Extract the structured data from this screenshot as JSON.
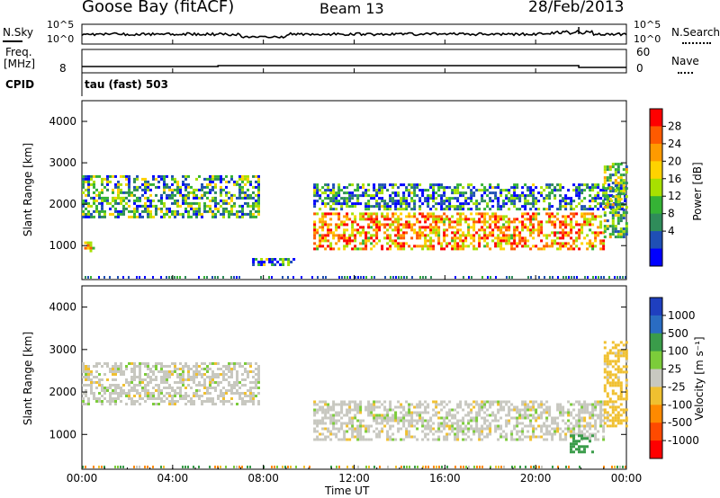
{
  "header": {
    "station": "Goose Bay (fitACF)",
    "beam": "Beam 13",
    "date": "28/Feb/2013"
  },
  "noise_panel": {
    "left_label": "N.Sky",
    "right_label": "N.Search",
    "right_ticks": [
      "10^5",
      "10^0"
    ],
    "left_ticks": [
      "10^5",
      "10^0"
    ]
  },
  "freq_panel": {
    "left_label_line1": "Freq.",
    "left_label_line2": "[MHz]",
    "left_ticks": [
      "8"
    ],
    "right_label": "Nave",
    "right_ticks": [
      "60",
      "0"
    ]
  },
  "cpid": {
    "label": "CPID",
    "value": "tau (fast) 503"
  },
  "x_axis": {
    "label": "Time UT",
    "ticks": [
      "00:00",
      "04:00",
      "08:00",
      "12:00",
      "16:00",
      "20:00",
      "00:00"
    ]
  },
  "power_panel": {
    "ylabel": "Slant Range [km]",
    "yticks": [
      "4000",
      "3000",
      "2000",
      "1000"
    ],
    "colorbar_label": "Power [dB]",
    "colorbar_ticks": [
      "28",
      "24",
      "20",
      "16",
      "12",
      "8",
      "4"
    ],
    "colorbar_colors": [
      "#ff0000",
      "#ff5a00",
      "#ff9a00",
      "#ffd200",
      "#a8e000",
      "#35b335",
      "#2f8c5a",
      "#1f4fb5",
      "#0000ff"
    ]
  },
  "velocity_panel": {
    "ylabel": "Slant Range [km]",
    "yticks": [
      "4000",
      "3000",
      "2000",
      "1000"
    ],
    "colorbar_label": "Velocity [m s⁻¹]",
    "colorbar_ticks": [
      "1000",
      "500",
      "100",
      "25",
      "-25",
      "-100",
      "-500",
      "-1000"
    ],
    "colorbar_colors": [
      "#1f3fbf",
      "#2a6cc2",
      "#3a9c4a",
      "#7ccc3a",
      "#c8c8c0",
      "#f0c030",
      "#ff8a00",
      "#ff4a00",
      "#ff0000"
    ]
  },
  "chart_data": {
    "type": "heatmap",
    "x_range_hours": [
      0,
      24
    ],
    "y_range_km": [
      180,
      4500
    ],
    "power_colorbar_range_db": [
      0,
      30
    ],
    "power_echo_regions": [
      {
        "t_start": 0.0,
        "t_end": 7.8,
        "range_km": [
          1700,
          2700
        ],
        "power_db": 10
      },
      {
        "t_start": 0.1,
        "t_end": 0.5,
        "range_km": [
          850,
          1100
        ],
        "power_db": 20
      },
      {
        "t_start": 7.5,
        "t_end": 9.5,
        "range_km": [
          550,
          700
        ],
        "power_db": 8
      },
      {
        "t_start": 10.2,
        "t_end": 23.0,
        "range_km": [
          900,
          1800
        ],
        "power_db": 22
      },
      {
        "t_start": 10.2,
        "t_end": 24.0,
        "range_km": [
          1900,
          2500
        ],
        "power_db": 8
      },
      {
        "t_start": 23.0,
        "t_end": 24.0,
        "range_km": [
          1200,
          3000
        ],
        "power_db": 12
      }
    ],
    "velocity_echo_regions": [
      {
        "t_start": 0.0,
        "t_end": 7.8,
        "range_km": [
          1700,
          2700
        ],
        "velocity_ms": 0
      },
      {
        "t_start": 10.2,
        "t_end": 23.0,
        "range_km": [
          900,
          1800
        ],
        "velocity_ms": 0
      },
      {
        "t_start": 21.5,
        "t_end": 22.5,
        "range_km": [
          600,
          1000
        ],
        "velocity_ms": 300
      },
      {
        "t_start": 23.0,
        "t_end": 24.0,
        "range_km": [
          1200,
          3200
        ],
        "velocity_ms": -50
      }
    ],
    "nave": 30,
    "frequency_mhz": 10.5
  }
}
